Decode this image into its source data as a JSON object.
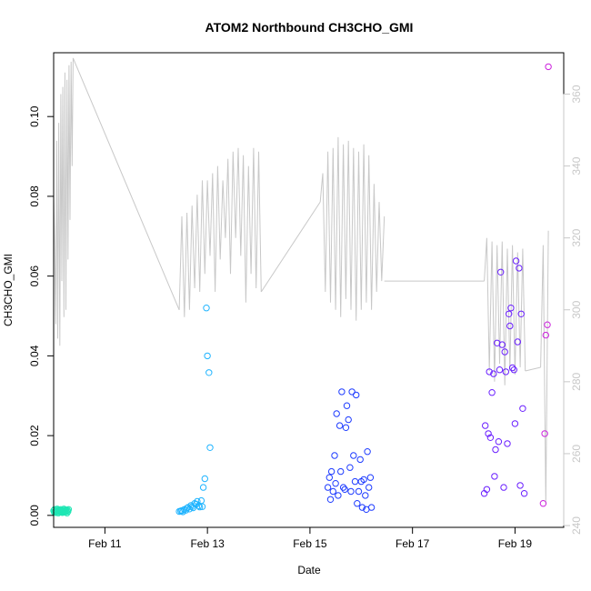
{
  "chart_data": {
    "type": "scatter",
    "title": "ATOM2 Northbound CH3CHO_GMI",
    "xlabel": "Date",
    "ylabel": "CH3CHO_GMI",
    "x_unit": "days since Feb 10 00:00",
    "xlim": [
      0.0,
      9.95
    ],
    "ylim": [
      -0.003,
      0.116
    ],
    "y2lim": [
      239.5,
      371.5
    ],
    "x_ticks": [
      {
        "value": 1,
        "label": "Feb 11"
      },
      {
        "value": 3,
        "label": "Feb 13"
      },
      {
        "value": 5,
        "label": "Feb 15"
      },
      {
        "value": 7,
        "label": "Feb 17"
      },
      {
        "value": 9,
        "label": "Feb 19"
      }
    ],
    "y_ticks": [
      {
        "value": 0.0,
        "label": "0.00"
      },
      {
        "value": 0.02,
        "label": "0.02"
      },
      {
        "value": 0.04,
        "label": "0.04"
      },
      {
        "value": 0.06,
        "label": "0.06"
      },
      {
        "value": 0.08,
        "label": "0.08"
      },
      {
        "value": 0.1,
        "label": "0.10"
      }
    ],
    "y2_ticks": [
      {
        "value": 240,
        "label": "240"
      },
      {
        "value": 260,
        "label": "260"
      },
      {
        "value": 280,
        "label": "280"
      },
      {
        "value": 300,
        "label": "300"
      },
      {
        "value": 320,
        "label": "320"
      },
      {
        "value": 340,
        "label": "340"
      },
      {
        "value": 360,
        "label": "360"
      }
    ],
    "grid": false,
    "legend": "none",
    "colors": {
      "secondary_line": "#c8c8c8",
      "axis": "#000000",
      "right_axis": "#c8c8c8",
      "flight_1": "#1fe6b4",
      "flight_2": "#1fb4ff",
      "flight_3": "#1e3cff",
      "flight_4": "#6a1fff",
      "flight_5": "#cc22dd"
    },
    "series": [
      {
        "color_key": "flight_1",
        "x": [
          0.0,
          0.01,
          0.02,
          0.03,
          0.04,
          0.05,
          0.06,
          0.07,
          0.08,
          0.09,
          0.1,
          0.11,
          0.12,
          0.13,
          0.14,
          0.15,
          0.16,
          0.17,
          0.18,
          0.19,
          0.2,
          0.21,
          0.22,
          0.23,
          0.24,
          0.25,
          0.26,
          0.27,
          0.28,
          0.29
        ],
        "y": [
          0.0012,
          0.0008,
          0.0015,
          0.001,
          0.0007,
          0.0013,
          0.0009,
          0.0016,
          0.0011,
          0.0006,
          0.0014,
          0.001,
          0.0008,
          0.0012,
          0.0015,
          0.0009,
          0.0011,
          0.0007,
          0.0013,
          0.001,
          0.0016,
          0.0008,
          0.0012,
          0.0014,
          0.0009,
          0.0011,
          0.0006,
          0.0013,
          0.001,
          0.0015
        ]
      },
      {
        "color_key": "flight_2",
        "x": [
          2.45,
          2.48,
          2.5,
          2.52,
          2.55,
          2.58,
          2.6,
          2.62,
          2.65,
          2.68,
          2.7,
          2.72,
          2.75,
          2.78,
          2.8,
          2.83,
          2.85,
          2.88,
          2.9,
          2.92,
          2.95,
          2.98,
          3.0,
          3.03,
          3.05
        ],
        "y": [
          0.001,
          0.0011,
          0.0012,
          0.0009,
          0.0015,
          0.0013,
          0.0018,
          0.002,
          0.0016,
          0.0025,
          0.0022,
          0.0019,
          0.003,
          0.0028,
          0.0035,
          0.0024,
          0.0021,
          0.0037,
          0.0022,
          0.007,
          0.0092,
          0.052,
          0.04,
          0.0358,
          0.017
        ]
      },
      {
        "color_key": "flight_3",
        "x": [
          5.35,
          5.38,
          5.4,
          5.42,
          5.45,
          5.48,
          5.5,
          5.52,
          5.55,
          5.58,
          5.6,
          5.62,
          5.65,
          5.68,
          5.7,
          5.72,
          5.75,
          5.78,
          5.8,
          5.82,
          5.85,
          5.88,
          5.9,
          5.92,
          5.95,
          5.98,
          6.0,
          6.02,
          6.05,
          6.08,
          6.1,
          6.12,
          6.15,
          6.18,
          6.2
        ],
        "y": [
          0.007,
          0.0095,
          0.004,
          0.011,
          0.006,
          0.015,
          0.008,
          0.0255,
          0.005,
          0.0225,
          0.011,
          0.031,
          0.007,
          0.0065,
          0.022,
          0.0275,
          0.024,
          0.012,
          0.006,
          0.031,
          0.015,
          0.0085,
          0.0302,
          0.003,
          0.006,
          0.014,
          0.0085,
          0.002,
          0.009,
          0.005,
          0.0015,
          0.016,
          0.007,
          0.0095,
          0.002
        ]
      },
      {
        "color_key": "flight_4",
        "x": [
          8.4,
          8.42,
          8.45,
          8.48,
          8.5,
          8.52,
          8.55,
          8.58,
          8.6,
          8.62,
          8.65,
          8.68,
          8.7,
          8.72,
          8.75,
          8.78,
          8.8,
          8.82,
          8.85,
          8.88,
          8.9,
          8.92,
          8.95,
          8.98,
          9.0,
          9.02,
          9.05,
          9.08,
          9.1,
          9.12,
          9.15,
          9.18
        ],
        "y": [
          0.0055,
          0.0225,
          0.0065,
          0.0205,
          0.036,
          0.0195,
          0.0308,
          0.0355,
          0.0098,
          0.0165,
          0.0432,
          0.0185,
          0.0365,
          0.061,
          0.0428,
          0.007,
          0.041,
          0.036,
          0.018,
          0.0505,
          0.0475,
          0.052,
          0.037,
          0.0365,
          0.023,
          0.0638,
          0.0435,
          0.062,
          0.0075,
          0.0505,
          0.0268,
          0.0055
        ]
      },
      {
        "color_key": "flight_5",
        "x": [
          9.55,
          9.58,
          9.6,
          9.63,
          9.65
        ],
        "y": [
          0.003,
          0.0205,
          0.0452,
          0.0478,
          0.1125
        ]
      }
    ],
    "secondary_series": {
      "axis": "right",
      "segments": [
        {
          "x": [
            0.0,
            0.02,
            0.04,
            0.06,
            0.08,
            0.1,
            0.12,
            0.14,
            0.16,
            0.18,
            0.2,
            0.22,
            0.24,
            0.26,
            0.28,
            0.3,
            0.32,
            0.34,
            0.36,
            0.38
          ],
          "y": [
            332,
            318,
            296,
            347,
            292,
            352,
            290,
            360,
            308,
            362,
            298,
            366,
            300,
            364,
            314,
            368,
            325,
            369,
            340,
            370
          ]
        },
        {
          "x": [
            0.38,
            2.45
          ],
          "y": [
            370,
            300
          ]
        },
        {
          "x": [
            2.45,
            2.5,
            2.55,
            2.6,
            2.65,
            2.7,
            2.75,
            2.8,
            2.85,
            2.9,
            2.95,
            3.0,
            3.05,
            3.1,
            3.15,
            3.2,
            3.25,
            3.3,
            3.35,
            3.4,
            3.45,
            3.5,
            3.55,
            3.6,
            3.65,
            3.7,
            3.75,
            3.8,
            3.85,
            3.9,
            3.95,
            4.0,
            4.05
          ],
          "y": [
            300,
            326,
            298,
            327,
            300,
            329,
            306,
            332,
            305,
            336,
            310,
            336,
            315,
            338,
            305,
            340,
            314,
            336,
            320,
            342,
            310,
            344,
            320,
            345,
            315,
            343,
            302,
            340,
            310,
            345,
            306,
            344,
            305
          ]
        },
        {
          "x": [
            4.05,
            5.2
          ],
          "y": [
            305,
            330
          ]
        },
        {
          "x": [
            5.2,
            5.25,
            5.3,
            5.35,
            5.4,
            5.45,
            5.5,
            5.55,
            5.6,
            5.65,
            5.7,
            5.75,
            5.8,
            5.85,
            5.9,
            5.95,
            6.0,
            6.05,
            6.1,
            6.15,
            6.2,
            6.25,
            6.3,
            6.35,
            6.4,
            6.45
          ],
          "y": [
            330,
            338,
            305,
            344,
            302,
            345,
            300,
            348,
            298,
            346,
            303,
            347,
            300,
            345,
            297,
            344,
            300,
            346,
            302,
            343,
            300,
            335,
            305,
            330,
            308,
            326
          ]
        },
        {
          "x": [
            6.45,
            8.4
          ],
          "y": [
            308,
            308
          ]
        },
        {
          "x": [
            8.4,
            8.45,
            8.5,
            8.55,
            8.6,
            8.65,
            8.7,
            8.75,
            8.8,
            8.85,
            8.9,
            8.95,
            9.0,
            9.05,
            9.1,
            9.15,
            9.2
          ],
          "y": [
            308,
            320,
            283,
            319,
            280,
            318,
            285,
            319,
            279,
            317,
            283,
            318,
            282,
            316,
            284,
            317,
            283
          ]
        },
        {
          "x": [
            9.2,
            9.5
          ],
          "y": [
            283,
            284
          ]
        },
        {
          "x": [
            9.5,
            9.55,
            9.6,
            9.65
          ],
          "y": [
            284,
            318,
            246,
            322
          ]
        }
      ]
    }
  }
}
